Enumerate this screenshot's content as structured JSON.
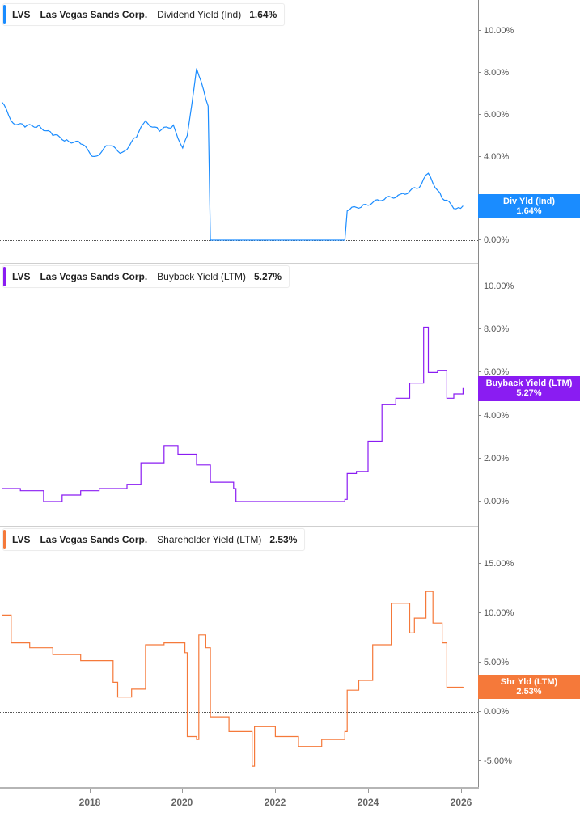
{
  "chart_data": [
    {
      "type": "line",
      "title": "LVS Las Vegas Sands Corp. Dividend Yield (Ind) 1.64%",
      "ticker": "LVS",
      "company": "Las Vegas Sands Corp.",
      "metric": "Dividend Yield (Ind)",
      "current_value": "1.64%",
      "tag_label": "Div Yld (Ind)",
      "color": "#1a8cff",
      "yticks": [
        "10.00%",
        "8.00%",
        "6.00%",
        "4.00%",
        "2.00%",
        "0.00%"
      ],
      "ylim": [
        0,
        11
      ],
      "x": [
        2016.1,
        2016.3,
        2016.6,
        2016.9,
        2017.2,
        2017.5,
        2017.8,
        2018.1,
        2018.4,
        2018.7,
        2019.0,
        2019.2,
        2019.5,
        2019.8,
        2020.0,
        2020.1,
        2020.3,
        2020.55,
        2020.6,
        2023.5,
        2023.55,
        2023.9,
        2024.3,
        2024.7,
        2025.1,
        2025.3,
        2025.6,
        2025.9,
        2026.05
      ],
      "values": [
        6.6,
        5.7,
        5.4,
        5.5,
        5.0,
        4.8,
        4.6,
        4.0,
        4.5,
        4.2,
        4.9,
        5.7,
        5.2,
        5.5,
        4.4,
        5.0,
        8.2,
        6.4,
        0.0,
        0.0,
        1.4,
        1.7,
        1.9,
        2.2,
        2.5,
        3.2,
        2.0,
        1.5,
        1.64
      ]
    },
    {
      "type": "line",
      "title": "LVS Las Vegas Sands Corp. Buyback Yield (LTM) 5.27%",
      "ticker": "LVS",
      "company": "Las Vegas Sands Corp.",
      "metric": "Buyback Yield (LTM)",
      "current_value": "5.27%",
      "tag_label": "Buyback Yield (LTM)",
      "color": "#8a1cf2",
      "yticks": [
        "10.00%",
        "8.00%",
        "6.00%",
        "4.00%",
        "2.00%",
        " 0.00%"
      ],
      "ylim": [
        0,
        10.5
      ],
      "x": [
        2016.1,
        2016.5,
        2017.0,
        2017.4,
        2017.8,
        2018.2,
        2018.8,
        2019.1,
        2019.6,
        2019.9,
        2020.3,
        2020.6,
        2021.1,
        2021.15,
        2023.5,
        2023.55,
        2023.75,
        2024.0,
        2024.3,
        2024.6,
        2024.9,
        2025.2,
        2025.3,
        2025.5,
        2025.7,
        2025.85,
        2026.05
      ],
      "values": [
        0.6,
        0.5,
        0.0,
        0.3,
        0.5,
        0.6,
        0.8,
        1.8,
        2.6,
        2.2,
        1.7,
        0.9,
        0.6,
        0.0,
        0.1,
        1.3,
        1.4,
        2.8,
        4.5,
        4.8,
        5.5,
        8.1,
        6.0,
        6.1,
        4.8,
        5.0,
        5.27
      ]
    },
    {
      "type": "line",
      "title": "LVS Las Vegas Sands Corp. Shareholder Yield (LTM) 2.53%",
      "ticker": "LVS",
      "company": "Las Vegas Sands Corp.",
      "metric": "Shareholder Yield (LTM)",
      "current_value": "2.53%",
      "tag_label": "Shr Yld (LTM)",
      "color": "#f5793a",
      "yticks": [
        "15.00%",
        "10.00%",
        "5.00%",
        "0.00%",
        "-5.00%"
      ],
      "ylim": [
        -6,
        17
      ],
      "x": [
        2016.1,
        2016.3,
        2016.7,
        2017.2,
        2017.8,
        2018.5,
        2018.6,
        2018.9,
        2019.2,
        2019.6,
        2020.05,
        2020.1,
        2020.3,
        2020.35,
        2020.5,
        2020.6,
        2021.0,
        2021.5,
        2021.55,
        2022.0,
        2022.5,
        2023.0,
        2023.5,
        2023.55,
        2023.8,
        2024.1,
        2024.5,
        2024.9,
        2025.0,
        2025.25,
        2025.4,
        2025.6,
        2025.7,
        2026.05
      ],
      "values": [
        9.8,
        7.0,
        6.5,
        5.8,
        5.2,
        3.0,
        1.5,
        2.3,
        6.8,
        7.0,
        6.0,
        -2.5,
        -2.8,
        7.8,
        6.5,
        -0.5,
        -2.0,
        -5.5,
        -1.5,
        -2.5,
        -3.5,
        -2.8,
        -2.0,
        2.2,
        3.2,
        6.8,
        11.0,
        8.0,
        9.5,
        12.2,
        9.0,
        7.0,
        2.5,
        2.53
      ]
    }
  ],
  "xaxis": {
    "ticks": [
      "2018",
      "2020",
      "2022",
      "2024",
      "2026"
    ]
  },
  "panels": [
    {
      "ticker": "LVS",
      "company": "Las Vegas Sands Corp.",
      "metric": "Dividend Yield (Ind)",
      "value": "1.64%",
      "tag": "Div Yld (Ind)",
      "tag_value": "1.64%",
      "ticks": [
        "10.00%",
        "8.00%",
        "6.00%",
        "4.00%",
        "2.00%",
        "0.00%"
      ]
    },
    {
      "ticker": "LVS",
      "company": "Las Vegas Sands Corp.",
      "metric": "Buyback Yield (LTM)",
      "value": "5.27%",
      "tag": "Buyback Yield (LTM)",
      "tag_value": "5.27%",
      "ticks": [
        "10.00%",
        "8.00%",
        "6.00%",
        "4.00%",
        "2.00%",
        "0.00%"
      ]
    },
    {
      "ticker": "LVS",
      "company": "Las Vegas Sands Corp.",
      "metric": "Shareholder Yield (LTM)",
      "value": "2.53%",
      "tag": "Shr Yld (LTM)",
      "tag_value": "2.53%",
      "ticks": [
        "15.00%",
        "10.00%",
        "5.00%",
        "0.00%",
        "-5.00%"
      ]
    }
  ],
  "colors": {
    "dividend": "#1a8cff",
    "buyback": "#8a1cf2",
    "shareholder": "#f5793a"
  }
}
